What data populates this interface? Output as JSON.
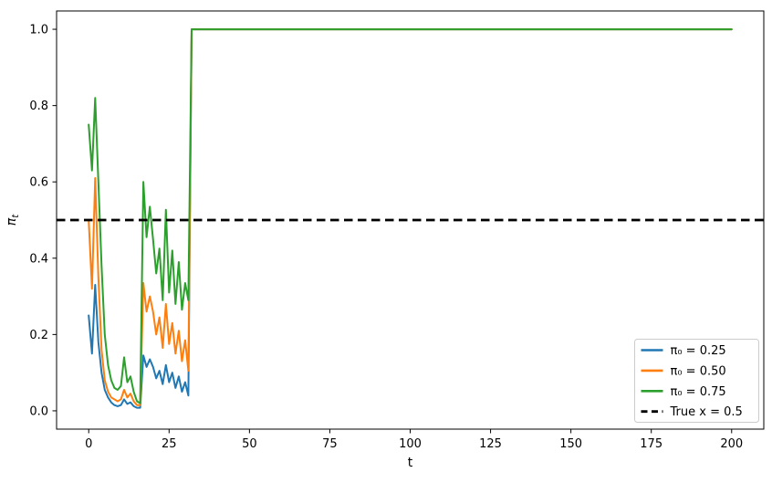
{
  "chart_data": {
    "type": "line",
    "title": "",
    "xlabel": "t",
    "ylabel": {
      "base": "π",
      "sub": "t"
    },
    "xlim": [
      -10,
      210
    ],
    "ylim": [
      -0.048,
      1.048
    ],
    "x_ticks": [
      0,
      25,
      50,
      75,
      100,
      125,
      150,
      175,
      200
    ],
    "y_ticks": [
      0.0,
      0.2,
      0.4,
      0.6,
      0.8,
      1.0
    ],
    "grid": false,
    "legend_position": "lower right",
    "x": [
      0,
      1,
      2,
      3,
      4,
      5,
      6,
      7,
      8,
      9,
      10,
      11,
      12,
      13,
      14,
      15,
      16,
      17,
      18,
      19,
      20,
      21,
      22,
      23,
      24,
      25,
      26,
      27,
      28,
      29,
      30,
      31,
      32,
      200
    ],
    "series": [
      {
        "name": "π₀ = 0.25",
        "color": "#1f77b4",
        "values": [
          0.25,
          0.15,
          0.33,
          0.18,
          0.1,
          0.055,
          0.035,
          0.022,
          0.015,
          0.012,
          0.015,
          0.03,
          0.018,
          0.022,
          0.012,
          0.008,
          0.008,
          0.145,
          0.115,
          0.135,
          0.115,
          0.085,
          0.105,
          0.07,
          0.12,
          0.075,
          0.1,
          0.06,
          0.09,
          0.05,
          0.075,
          0.04,
          1.0,
          1.0
        ]
      },
      {
        "name": "π₀ = 0.50",
        "color": "#ff7f0e",
        "values": [
          0.5,
          0.32,
          0.61,
          0.35,
          0.16,
          0.08,
          0.05,
          0.035,
          0.03,
          0.025,
          0.03,
          0.055,
          0.035,
          0.045,
          0.025,
          0.015,
          0.015,
          0.335,
          0.26,
          0.3,
          0.26,
          0.2,
          0.245,
          0.165,
          0.28,
          0.175,
          0.23,
          0.15,
          0.21,
          0.13,
          0.185,
          0.105,
          1.0,
          1.0
        ]
      },
      {
        "name": "π₀ = 0.75",
        "color": "#2ca02c",
        "values": [
          0.75,
          0.63,
          0.82,
          0.6,
          0.38,
          0.2,
          0.12,
          0.08,
          0.06,
          0.055,
          0.065,
          0.14,
          0.075,
          0.09,
          0.05,
          0.025,
          0.02,
          0.6,
          0.455,
          0.535,
          0.45,
          0.36,
          0.425,
          0.29,
          0.527,
          0.31,
          0.42,
          0.28,
          0.39,
          0.265,
          0.335,
          0.29,
          1.0,
          1.0
        ]
      }
    ],
    "reference_line": {
      "name": "True x = 0.5",
      "value": 0.5,
      "color": "#000000",
      "style": "dashed"
    }
  }
}
